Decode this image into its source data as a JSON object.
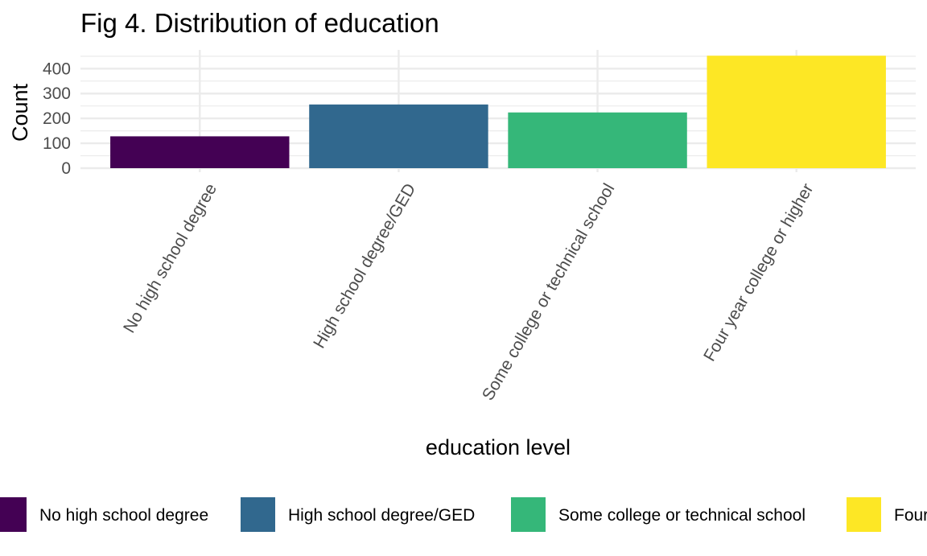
{
  "chart_data": {
    "type": "bar",
    "title": "Fig 4. Distribution of education",
    "xlabel": "education level",
    "ylabel": "Count",
    "categories": [
      "No high school degree",
      "High school degree/GED",
      "Some college or technical school",
      "Four year college or higher"
    ],
    "values": [
      128,
      256,
      224,
      452
    ],
    "ylim": [
      0,
      460
    ],
    "yticks": [
      0,
      100,
      200,
      300,
      400
    ],
    "colors": [
      "#440154",
      "#31688E",
      "#35B779",
      "#FDE725"
    ],
    "grid": true,
    "legend": {
      "position": "bottom",
      "entries": [
        "No high school degree",
        "High school degree/GED",
        "Some college or technical school",
        "Four year college or higher"
      ]
    }
  }
}
